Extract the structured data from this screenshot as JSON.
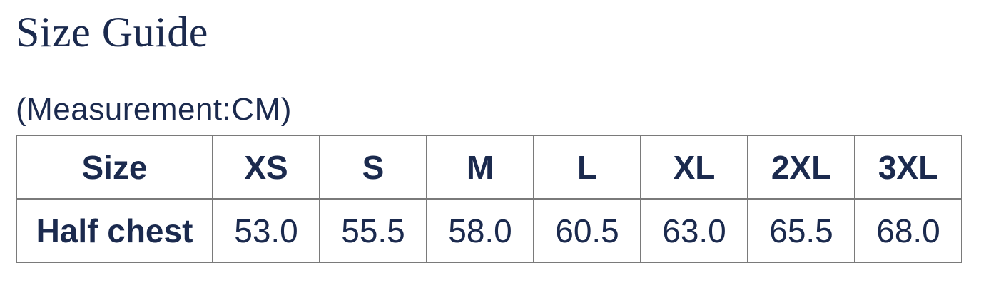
{
  "page": {
    "title": "Size Guide",
    "measurement_label": "(Measurement:CM)"
  },
  "colors": {
    "text_navy": "#1b2a4e",
    "table_border": "#7a7a7a",
    "background": "#ffffff"
  },
  "size_table": {
    "header": [
      "Size",
      "XS",
      "S",
      "M",
      "L",
      "XL",
      "2XL",
      "3XL"
    ],
    "rows": [
      [
        "Half chest",
        "53.0",
        "55.5",
        "58.0",
        "60.5",
        "63.0",
        "65.5",
        "68.0"
      ]
    ]
  }
}
